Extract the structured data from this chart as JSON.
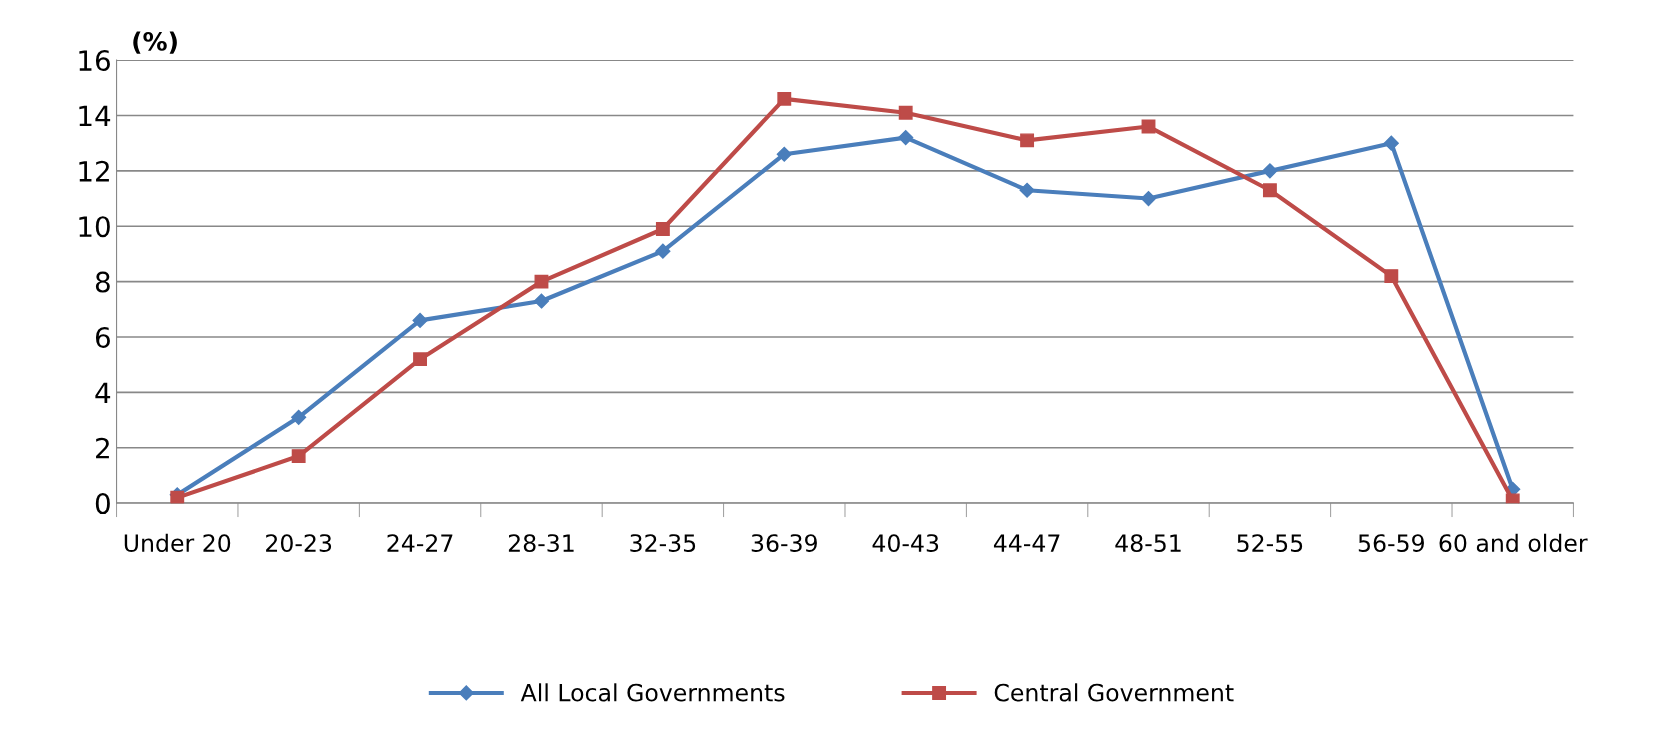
{
  "chart_data": {
    "type": "line",
    "ylabel": "(%)",
    "categories": [
      "Under 20",
      "20-23",
      "24-27",
      "28-31",
      "32-35",
      "36-39",
      "40-43",
      "44-47",
      "48-51",
      "52-55",
      "56-59",
      "60 and older"
    ],
    "series": [
      {
        "name": "All Local Governments",
        "color": "#4a7ebb",
        "marker": "diamond",
        "values": [
          0.3,
          3.1,
          6.6,
          7.3,
          9.1,
          12.6,
          13.2,
          11.3,
          11.0,
          12.0,
          13.0,
          0.5
        ]
      },
      {
        "name": "Central Government",
        "color": "#be4b48",
        "marker": "square",
        "values": [
          0.2,
          1.7,
          5.2,
          8.0,
          9.9,
          14.6,
          14.1,
          13.1,
          13.6,
          11.3,
          8.2,
          0.1
        ]
      }
    ],
    "ylim": [
      0,
      16
    ],
    "yticks": [
      0,
      2,
      4,
      6,
      8,
      10,
      12,
      14,
      16
    ],
    "grid": "y",
    "legend": "bottom",
    "line_style": "solid"
  }
}
